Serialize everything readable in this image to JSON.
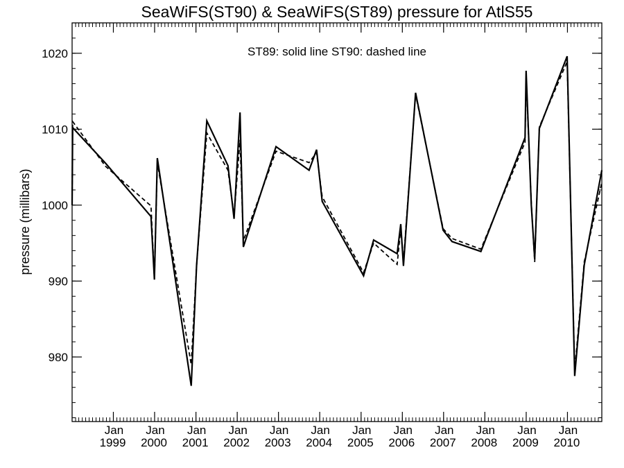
{
  "chart_data": {
    "type": "line",
    "title": "SeaWiFS(ST90) & SeaWiFS(ST89)  pressure for AtlS55",
    "annotation": "ST89: solid line   ST90: dashed line",
    "xlabel": "",
    "ylabel": "pressure (millibars)",
    "xlim": [
      "1998-01-01",
      "2010-11-01"
    ],
    "ylim": [
      971.5,
      1024
    ],
    "y_ticks": [
      980,
      990,
      1000,
      1010,
      1020
    ],
    "x_ticks": [
      {
        "date": "1999-01-01",
        "month": "Jan",
        "year": "1999"
      },
      {
        "date": "2000-01-01",
        "month": "Jan",
        "year": "2000"
      },
      {
        "date": "2001-01-01",
        "month": "Jan",
        "year": "2001"
      },
      {
        "date": "2002-01-01",
        "month": "Jan",
        "year": "2002"
      },
      {
        "date": "2003-01-01",
        "month": "Jan",
        "year": "2003"
      },
      {
        "date": "2004-01-01",
        "month": "Jan",
        "year": "2004"
      },
      {
        "date": "2005-01-01",
        "month": "Jan",
        "year": "2005"
      },
      {
        "date": "2006-01-01",
        "month": "Jan",
        "year": "2006"
      },
      {
        "date": "2007-01-01",
        "month": "Jan",
        "year": "2007"
      },
      {
        "date": "2008-01-01",
        "month": "Jan",
        "year": "2008"
      },
      {
        "date": "2009-01-01",
        "month": "Jan",
        "year": "2009"
      },
      {
        "date": "2010-01-01",
        "month": "Jan",
        "year": "2010"
      }
    ],
    "series": [
      {
        "name": "ST89",
        "style": "solid",
        "color": "#000000",
        "points": [
          [
            "1998-01-01",
            1000.0
          ],
          [
            "1998-01-06",
            1010.2
          ],
          [
            "1998-10-25",
            1005.5
          ],
          [
            "1999-11-30",
            998.5
          ],
          [
            "1999-12-30",
            990.2
          ],
          [
            "2000-01-25",
            1006.2
          ],
          [
            "2000-11-20",
            976.2
          ],
          [
            "2001-01-06",
            992.0
          ],
          [
            "2001-04-07",
            1011.1
          ],
          [
            "2001-10-11",
            1005.2
          ],
          [
            "2001-12-04",
            998.2
          ],
          [
            "2002-01-26",
            1012.2
          ],
          [
            "2002-02-24",
            994.5
          ],
          [
            "2002-12-10",
            1007.7
          ],
          [
            "2003-09-29",
            1004.6
          ],
          [
            "2003-12-04",
            1007.3
          ],
          [
            "2004-01-23",
            1000.5
          ],
          [
            "2005-01-23",
            990.7
          ],
          [
            "2005-04-22",
            995.4
          ],
          [
            "2005-11-16",
            993.6
          ],
          [
            "2005-12-18",
            997.5
          ],
          [
            "2006-01-11",
            992.0
          ],
          [
            "2006-04-28",
            1014.8
          ],
          [
            "2006-12-28",
            996.7
          ],
          [
            "2007-03-17",
            995.2
          ],
          [
            "2007-11-27",
            993.9
          ],
          [
            "2008-12-22",
            1008.9
          ],
          [
            "2008-12-31",
            1017.7
          ],
          [
            "2009-02-15",
            1000.0
          ],
          [
            "2009-03-17",
            992.9
          ],
          [
            "2009-04-27",
            1010.1
          ],
          [
            "2009-12-29",
            1019.6
          ],
          [
            "2010-03-06",
            977.5
          ],
          [
            "2010-05-29",
            992.1
          ],
          [
            "2010-11-01",
            1004.6
          ]
        ]
      },
      {
        "name": "ST90",
        "style": "dashed",
        "color": "#000000",
        "points": [
          [
            "1998-01-01",
            1000.0
          ],
          [
            "1998-01-06",
            1011.0
          ],
          [
            "1998-10-25",
            1005.1
          ],
          [
            "1999-11-30",
            999.9
          ],
          [
            "1999-12-30",
            990.2
          ],
          [
            "2000-01-25",
            1005.6
          ],
          [
            "2000-11-20",
            979.0
          ],
          [
            "2001-01-06",
            992.0
          ],
          [
            "2001-04-07",
            1009.5
          ],
          [
            "2001-10-11",
            1004.6
          ],
          [
            "2001-12-04",
            998.6
          ],
          [
            "2002-01-26",
            1008.6
          ],
          [
            "2002-02-24",
            995.3
          ],
          [
            "2002-12-10",
            1007.1
          ],
          [
            "2003-09-29",
            1005.6
          ],
          [
            "2003-12-04",
            1006.9
          ],
          [
            "2004-01-23",
            1001.1
          ],
          [
            "2005-01-23",
            991.1
          ],
          [
            "2005-04-22",
            995.0
          ],
          [
            "2005-11-16",
            992.2
          ],
          [
            "2005-12-18",
            996.9
          ],
          [
            "2006-01-11",
            992.6
          ],
          [
            "2006-04-28",
            1014.6
          ],
          [
            "2006-12-28",
            996.9
          ],
          [
            "2007-03-17",
            995.6
          ],
          [
            "2007-11-27",
            994.2
          ],
          [
            "2008-12-22",
            1008.3
          ],
          [
            "2008-12-31",
            1016.8
          ],
          [
            "2009-02-15",
            1000.3
          ],
          [
            "2009-03-17",
            992.5
          ],
          [
            "2009-04-27",
            1010.3
          ],
          [
            "2009-12-29",
            1018.9
          ],
          [
            "2010-03-06",
            978.2
          ],
          [
            "2010-05-29",
            992.5
          ],
          [
            "2010-11-01",
            1003.0
          ]
        ]
      }
    ],
    "grid": false,
    "legend": "none"
  }
}
